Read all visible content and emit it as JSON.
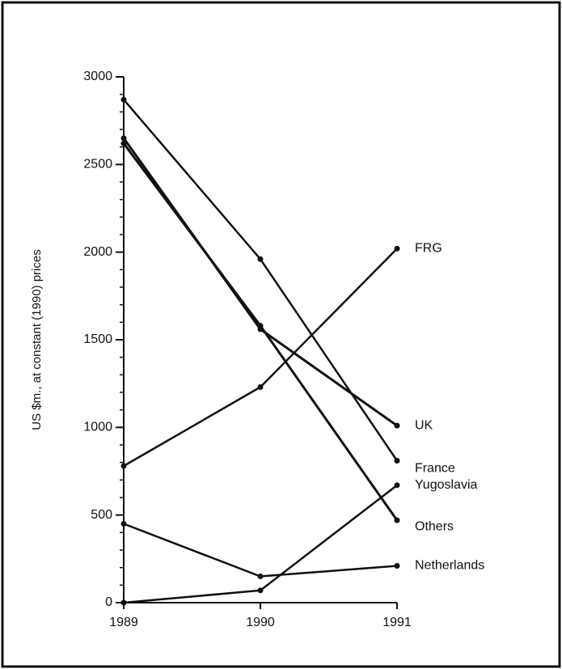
{
  "chart_data": {
    "type": "line",
    "y_label": "US $m., at constant (1990) prices",
    "x": [
      1989,
      1990,
      1991
    ],
    "xlim": [
      1989,
      1991
    ],
    "xticks": [
      1989,
      1990,
      1991
    ],
    "ylim": [
      0,
      3000
    ],
    "yticks": [
      0,
      500,
      1000,
      1500,
      2000,
      2500,
      3000
    ],
    "series": [
      {
        "name": "FRG",
        "color": "#111111",
        "values": [
          780,
          1230,
          2020
        ]
      },
      {
        "name": "UK",
        "color": "#111111",
        "values": [
          2650,
          1560,
          1010
        ]
      },
      {
        "name": "France",
        "color": "#111111",
        "values": [
          2870,
          1960,
          810
        ]
      },
      {
        "name": "Yugoslavia",
        "color": "#111111",
        "values": [
          0,
          70,
          670
        ]
      },
      {
        "name": "Others",
        "color": "#111111",
        "values": [
          2620,
          1580,
          470
        ]
      },
      {
        "name": "Netherlands",
        "color": "#111111",
        "values": [
          450,
          150,
          210
        ]
      }
    ]
  }
}
